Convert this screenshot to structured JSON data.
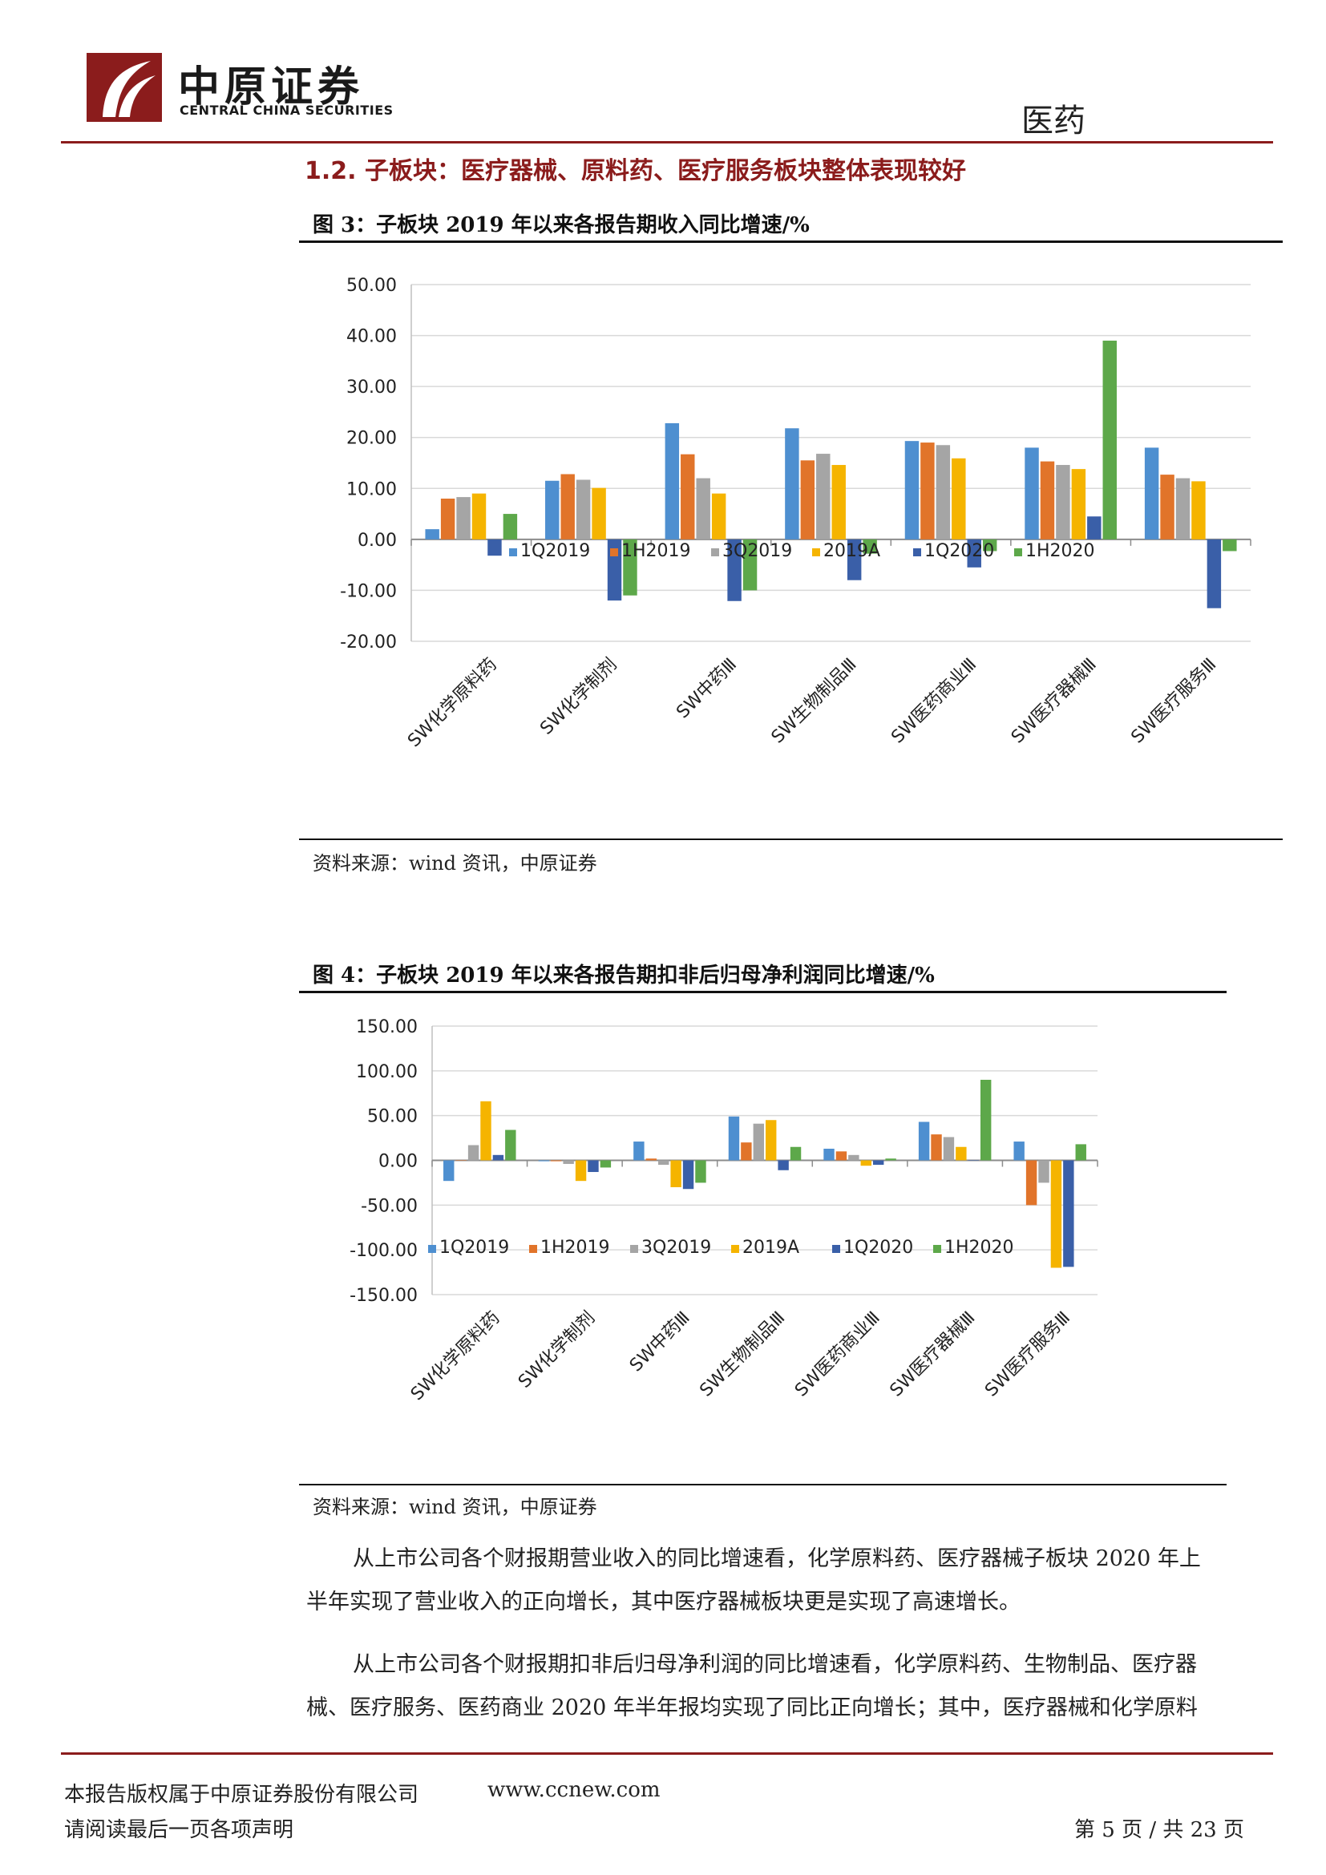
{
  "header": {
    "logo_cn": "中原证券",
    "logo_en": "CENTRAL CHINA SECURITIES",
    "section": "医药",
    "brand_color": "#8b1c1c"
  },
  "section_title": "1.2. 子板块：医疗器械、原料药、医疗服务板块整体表现较好",
  "figure3": {
    "title": "图 3：子板块 2019 年以来各报告期收入同比增速/%",
    "source": "资料来源：wind 资讯，中原证券"
  },
  "figure4": {
    "title": "图 4：子板块 2019 年以来各报告期扣非后归母净利润同比增速/%",
    "source": "资料来源：wind 资讯，中原证券"
  },
  "chart_data": [
    {
      "type": "bar",
      "title": "",
      "xlabel": "",
      "ylabel": "",
      "ylim": [
        -20,
        50
      ],
      "yticks": [
        50,
        40,
        30,
        20,
        10,
        0,
        -10,
        -20
      ],
      "ytick_labels": [
        "50.00",
        "40.00",
        "30.00",
        "20.00",
        "10.00",
        "0.00",
        "-10.00",
        "-20.00"
      ],
      "grid": true,
      "legend": "bottom",
      "categories": [
        "SW化学原料药",
        "SW化学制剂",
        "SW中药Ⅲ",
        "SW生物制品Ⅲ",
        "SW医药商业Ⅲ",
        "SW医疗器械Ⅲ",
        "SW医疗服务Ⅲ"
      ],
      "series": [
        {
          "name": "1Q2019",
          "color": "#4e8fd0",
          "values": [
            2.0,
            11.5,
            22.8,
            21.8,
            19.3,
            18.0,
            18.0
          ]
        },
        {
          "name": "1H2019",
          "color": "#e1742a",
          "values": [
            8.0,
            12.8,
            16.7,
            15.5,
            19.0,
            15.3,
            12.7
          ]
        },
        {
          "name": "3Q2019",
          "color": "#a5a5a5",
          "values": [
            8.3,
            11.7,
            12.0,
            16.8,
            18.5,
            14.6,
            12.0
          ]
        },
        {
          "name": "2019A",
          "color": "#f5b400",
          "values": [
            9.0,
            10.1,
            9.0,
            14.6,
            15.9,
            13.8,
            11.4
          ]
        },
        {
          "name": "1Q2020",
          "color": "#3a5fa8",
          "values": [
            -3.2,
            -12.0,
            -12.1,
            -8.0,
            -5.5,
            4.5,
            -13.5
          ]
        },
        {
          "name": "1H2020",
          "color": "#5da84a",
          "values": [
            5.0,
            -11.0,
            -10.0,
            -2.8,
            -2.3,
            39.0,
            -2.3
          ]
        }
      ]
    },
    {
      "type": "bar",
      "title": "",
      "xlabel": "",
      "ylabel": "",
      "ylim": [
        -150,
        150
      ],
      "yticks": [
        150,
        100,
        50,
        0,
        -50,
        -100,
        -150
      ],
      "ytick_labels": [
        "150.00",
        "100.00",
        "50.00",
        "0.00",
        "-50.00",
        "-100.00",
        "-150.00"
      ],
      "grid": true,
      "legend": "bottom",
      "categories": [
        "SW化学原料药",
        "SW化学制剂",
        "SW中药Ⅲ",
        "SW生物制品Ⅲ",
        "SW医药商业Ⅲ",
        "SW医疗器械Ⅲ",
        "SW医疗服务Ⅲ"
      ],
      "series": [
        {
          "name": "1Q2019",
          "color": "#4e8fd0",
          "values": [
            -23,
            -1,
            21,
            49,
            13,
            43,
            21
          ]
        },
        {
          "name": "1H2019",
          "color": "#e1742a",
          "values": [
            0,
            -1,
            2,
            20,
            10,
            29,
            -50
          ]
        },
        {
          "name": "3Q2019",
          "color": "#a5a5a5",
          "values": [
            17,
            -4,
            -5,
            41,
            6,
            26,
            -25
          ]
        },
        {
          "name": "2019A",
          "color": "#f5b400",
          "values": [
            66,
            -23,
            -30,
            45,
            -6,
            15,
            -120
          ]
        },
        {
          "name": "1Q2020",
          "color": "#3a5fa8",
          "values": [
            6,
            -13,
            -32,
            -11,
            -5,
            0,
            -119
          ]
        },
        {
          "name": "1H2020",
          "color": "#5da84a",
          "values": [
            34,
            -8,
            -25,
            15,
            2,
            90,
            18
          ]
        }
      ]
    }
  ],
  "paragraphs": {
    "p1_line1": "从上市公司各个财报期营业收入的同比增速看，化学原料药、医疗器械子板块 2020 年上",
    "p1_line2": "半年实现了营业收入的正向增长，其中医疗器械板块更是实现了高速增长。",
    "p2_line1": "从上市公司各个财报期扣非后归母净利润的同比增速看，化学原料药、生物制品、医疗器",
    "p2_line2": "械、医疗服务、医药商业 2020 年半年报均实现了同比正向增长；其中，医疗器械和化学原料"
  },
  "footer": {
    "copyright": "本报告版权属于中原证券股份有限公司",
    "website": "www.ccnew.com",
    "disclaimer": "请阅读最后一页各项声明",
    "page": "第 5 页 / 共 23 页"
  }
}
